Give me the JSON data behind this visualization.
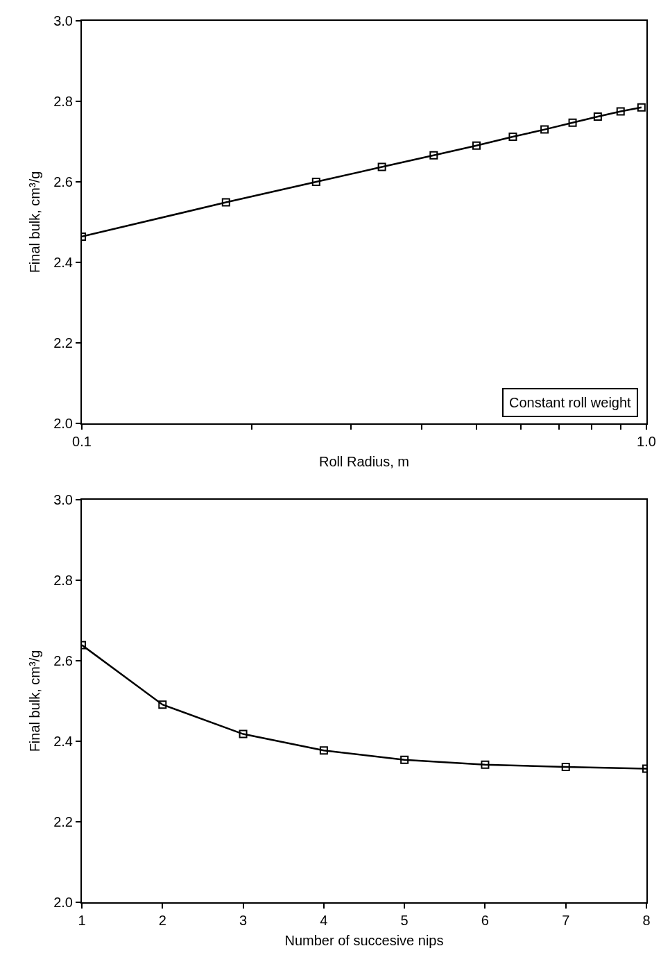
{
  "chart_data": [
    {
      "type": "line",
      "xlabel": "Roll Radius, m",
      "ylabel": "Final bulk, cm³/g",
      "log": "x",
      "marker": "square",
      "line_style": "solid",
      "grid": false,
      "x": [
        0.1,
        0.18,
        0.26,
        0.34,
        0.42,
        0.5,
        0.58,
        0.66,
        0.74,
        0.82,
        0.9,
        0.98
      ],
      "series": [
        {
          "color": "#000000",
          "values": [
            2.464,
            2.549,
            2.6,
            2.637,
            2.666,
            2.69,
            2.712,
            2.73,
            2.747,
            2.762,
            2.775,
            2.785
          ]
        }
      ],
      "xlim": [
        0.1,
        1
      ],
      "xticks": [
        {
          "value": 0.1,
          "label": "0.1"
        },
        {
          "value": 0.2,
          "label": null
        },
        {
          "value": 0.3,
          "label": null
        },
        {
          "value": 0.4,
          "label": null
        },
        {
          "value": 0.5,
          "label": null
        },
        {
          "value": 0.6,
          "label": null
        },
        {
          "value": 0.7,
          "label": null
        },
        {
          "value": 0.8,
          "label": null
        },
        {
          "value": 0.9,
          "label": null
        },
        {
          "value": 1,
          "label": "1.0"
        }
      ],
      "ylim": [
        2,
        3
      ],
      "yticks": [
        {
          "value": 2,
          "label": "2.0"
        },
        {
          "value": 2.2,
          "label": "2.2"
        },
        {
          "value": 2.4,
          "label": "2.4"
        },
        {
          "value": 2.6,
          "label": "2.6"
        },
        {
          "value": 2.8,
          "label": "2.8"
        },
        {
          "value": 3,
          "label": "3.0"
        }
      ],
      "annotations": [
        "Constant roll weight"
      ]
    },
    {
      "type": "line",
      "xlabel": "Number of succesive nips",
      "ylabel": "Final bulk, cm³/g",
      "marker": "square",
      "line_style": "solid",
      "grid": false,
      "x": [
        1,
        2,
        3,
        4,
        5,
        6,
        7,
        8
      ],
      "series": [
        {
          "color": "#000000",
          "values": [
            2.639,
            2.491,
            2.418,
            2.377,
            2.354,
            2.342,
            2.336,
            2.332
          ]
        }
      ],
      "xlim": [
        1,
        8
      ],
      "xticks": [
        1,
        2,
        3,
        4,
        5,
        6,
        7,
        8
      ],
      "ylim": [
        2,
        3
      ],
      "yticks": [
        {
          "value": 2,
          "label": "2.0"
        },
        {
          "value": 2.2,
          "label": "2.2"
        },
        {
          "value": 2.4,
          "label": "2.4"
        },
        {
          "value": 2.6,
          "label": "2.6"
        },
        {
          "value": 2.8,
          "label": "2.8"
        },
        {
          "value": 3,
          "label": "3.0"
        }
      ]
    }
  ]
}
